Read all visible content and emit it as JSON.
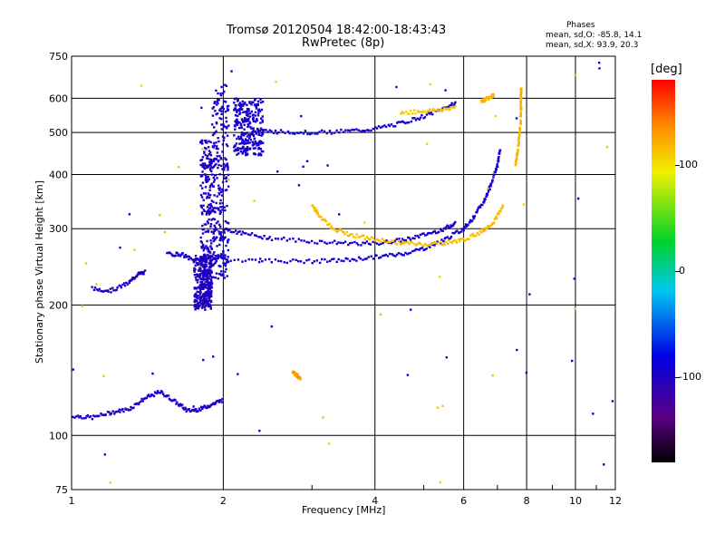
{
  "title": "Tromsø 20120504 18:42:00-18:43:43",
  "subtitle": "RwPretec (8p)",
  "stats": {
    "heading": "Phases",
    "line1": "mean, sd,O: -85.8, 14.1",
    "line2": "mean, sd,X:  93.9, 20.3"
  },
  "colorbar": {
    "label": "[deg]",
    "range": [
      -180,
      180
    ],
    "tick_labels": [
      "100",
      "0",
      "-100"
    ],
    "tick_values": [
      100,
      0,
      -100
    ]
  },
  "chart_data": {
    "type": "scatter",
    "xlabel": "Frequency [MHz]",
    "ylabel": "Stationary phase Virtual Height [km]",
    "xscale": "log",
    "yscale": "log",
    "xlim": [
      1,
      12
    ],
    "ylim": [
      75,
      750
    ],
    "grid": true,
    "xticks": [
      1,
      2,
      4,
      6,
      8,
      10,
      12
    ],
    "xtick_labels": [
      "1",
      "2",
      "4",
      "6",
      "8",
      "10",
      "12"
    ],
    "yticks": [
      75,
      100,
      200,
      300,
      400,
      500,
      600,
      750
    ],
    "ytick_labels": [
      "75",
      "100",
      "200",
      "300",
      "400",
      "500",
      "600",
      "750"
    ],
    "traces": [
      {
        "mode": "O",
        "phase": -95,
        "points": [
          [
            1.0,
            111
          ],
          [
            1.1,
            110
          ],
          [
            1.2,
            113
          ],
          [
            1.3,
            115
          ],
          [
            1.4,
            122
          ],
          [
            1.5,
            126
          ],
          [
            1.6,
            120
          ],
          [
            1.7,
            114
          ],
          [
            1.8,
            115
          ],
          [
            1.9,
            118
          ],
          [
            2.0,
            121
          ]
        ]
      },
      {
        "mode": "O",
        "phase": -100,
        "points": [
          [
            1.1,
            218
          ],
          [
            1.2,
            216
          ],
          [
            1.3,
            225
          ],
          [
            1.35,
            235
          ],
          [
            1.4,
            238
          ]
        ]
      },
      {
        "mode": "O",
        "phase": -90,
        "points": [
          [
            1.55,
            262
          ],
          [
            1.65,
            262
          ],
          [
            1.75,
            253
          ],
          [
            1.85,
            260
          ],
          [
            2.0,
            255
          ],
          [
            2.5,
            253
          ],
          [
            3.0,
            252
          ],
          [
            3.5,
            254
          ],
          [
            4.0,
            258
          ],
          [
            4.5,
            262
          ],
          [
            5.0,
            270
          ],
          [
            5.5,
            283
          ],
          [
            6.0,
            300
          ],
          [
            6.3,
            320
          ],
          [
            6.6,
            348
          ],
          [
            6.8,
            380
          ],
          [
            7.0,
            420
          ],
          [
            7.1,
            460
          ]
        ]
      },
      {
        "mode": "O",
        "phase": -95,
        "points": [
          [
            2.0,
            300
          ],
          [
            2.2,
            292
          ],
          [
            2.5,
            285
          ],
          [
            3.0,
            280
          ],
          [
            3.5,
            278
          ],
          [
            4.0,
            277
          ],
          [
            4.5,
            282
          ],
          [
            5.0,
            290
          ],
          [
            5.5,
            300
          ],
          [
            5.8,
            310
          ]
        ]
      },
      {
        "mode": "O",
        "phase": -90,
        "points": [
          [
            2.3,
            505
          ],
          [
            2.6,
            502
          ],
          [
            3.0,
            500
          ],
          [
            3.5,
            503
          ],
          [
            4.0,
            510
          ],
          [
            4.5,
            525
          ],
          [
            5.0,
            545
          ],
          [
            5.5,
            568
          ],
          [
            5.8,
            585
          ]
        ]
      },
      {
        "mode": "X",
        "phase": 115,
        "points": [
          [
            3.0,
            340
          ],
          [
            3.1,
            322
          ],
          [
            3.3,
            300
          ],
          [
            3.6,
            290
          ],
          [
            4.0,
            283
          ],
          [
            4.5,
            278
          ],
          [
            5.0,
            276
          ],
          [
            5.5,
            278
          ],
          [
            6.0,
            283
          ],
          [
            6.5,
            295
          ],
          [
            6.9,
            312
          ],
          [
            7.2,
            340
          ]
        ]
      },
      {
        "mode": "X",
        "phase": 112,
        "points": [
          [
            4.5,
            555
          ],
          [
            5.0,
            560
          ],
          [
            5.5,
            565
          ],
          [
            5.8,
            575
          ]
        ]
      },
      {
        "mode": "X",
        "phase": 118,
        "points": [
          [
            6.5,
            590
          ],
          [
            6.7,
            600
          ],
          [
            6.9,
            612
          ]
        ]
      },
      {
        "mode": "X",
        "phase": 120,
        "points": [
          [
            7.6,
            420
          ],
          [
            7.7,
            460
          ],
          [
            7.75,
            500
          ],
          [
            7.8,
            550
          ],
          [
            7.8,
            600
          ],
          [
            7.8,
            630
          ]
        ]
      },
      {
        "mode": "X",
        "phase": 130,
        "points": [
          [
            2.75,
            140
          ],
          [
            2.8,
            138
          ],
          [
            2.85,
            135
          ]
        ]
      }
    ],
    "vertical_spread": [
      {
        "x_range": [
          1.8,
          1.9
        ],
        "y_range": [
          205,
          480
        ],
        "phase": -100
      },
      {
        "x_range": [
          1.9,
          2.05
        ],
        "y_range": [
          230,
          650
        ],
        "phase": -95
      },
      {
        "x_range": [
          2.1,
          2.4
        ],
        "y_range": [
          440,
          600
        ],
        "phase": -95
      },
      {
        "x_range": [
          1.75,
          1.9
        ],
        "y_range": [
          195,
          260
        ],
        "phase": -100
      }
    ]
  }
}
